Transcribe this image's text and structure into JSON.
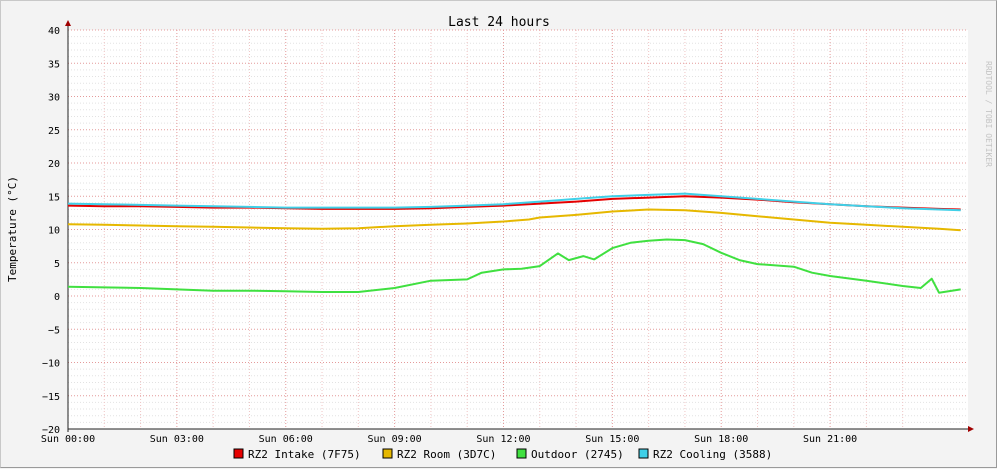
{
  "chart_data": {
    "type": "line",
    "title": "Last 24 hours",
    "ylabel": "Temperature (°C)",
    "xlabel": "",
    "watermark": "RRDTOOL / TOBI OETIKER",
    "ylim": [
      -20,
      40
    ],
    "y_ticks": [
      -20,
      -15,
      -10,
      -5,
      0,
      5,
      10,
      15,
      20,
      25,
      30,
      35,
      40
    ],
    "xlim": [
      0,
      24.8
    ],
    "x_ticks": [
      {
        "x": 0,
        "label": "Sun 00:00"
      },
      {
        "x": 3,
        "label": "Sun 03:00"
      },
      {
        "x": 6,
        "label": "Sun 06:00"
      },
      {
        "x": 9,
        "label": "Sun 09:00"
      },
      {
        "x": 12,
        "label": "Sun 12:00"
      },
      {
        "x": 15,
        "label": "Sun 15:00"
      },
      {
        "x": 18,
        "label": "Sun 18:00"
      },
      {
        "x": 21,
        "label": "Sun 21:00"
      }
    ],
    "grid": true,
    "legend_position": "bottom",
    "series": [
      {
        "name": "RZ2 Intake (7F75)",
        "color": "#e60000",
        "x": [
          0,
          1,
          2,
          3,
          4,
          5,
          6,
          7,
          8,
          9,
          10,
          11,
          12,
          13,
          14,
          15,
          16,
          17,
          18,
          19,
          20,
          21,
          22,
          23,
          24,
          24.6
        ],
        "y": [
          13.6,
          13.5,
          13.5,
          13.4,
          13.3,
          13.3,
          13.2,
          13.1,
          13.1,
          13.1,
          13.2,
          13.4,
          13.6,
          13.9,
          14.2,
          14.6,
          14.8,
          15.0,
          14.8,
          14.5,
          14.1,
          13.8,
          13.5,
          13.3,
          13.1,
          13.0
        ]
      },
      {
        "name": "RZ2 Room (3D7C)",
        "color": "#e6b800",
        "x": [
          0,
          1,
          2,
          3,
          4,
          5,
          6,
          7,
          8,
          9,
          10,
          11,
          12,
          12.7,
          13,
          14,
          15,
          16,
          17,
          18,
          19,
          20,
          21,
          22,
          23,
          24,
          24.6
        ],
        "y": [
          10.8,
          10.7,
          10.6,
          10.5,
          10.4,
          10.3,
          10.2,
          10.1,
          10.2,
          10.5,
          10.7,
          10.9,
          11.2,
          11.5,
          11.8,
          12.2,
          12.7,
          13.0,
          12.9,
          12.5,
          12.0,
          11.5,
          11.0,
          10.7,
          10.4,
          10.1,
          9.9
        ]
      },
      {
        "name": "Outdoor (2745)",
        "color": "#40e040",
        "x": [
          0,
          1,
          2,
          3,
          4,
          5,
          6,
          7,
          8,
          9,
          10,
          11,
          11.4,
          12,
          12.5,
          13,
          13.5,
          13.8,
          14.2,
          14.5,
          15,
          15.5,
          16,
          16.5,
          17,
          17.5,
          18,
          18.5,
          19,
          20,
          20.5,
          21,
          22,
          23,
          23.5,
          23.8,
          24,
          24.6
        ],
        "y": [
          1.4,
          1.3,
          1.2,
          1.0,
          0.8,
          0.8,
          0.7,
          0.6,
          0.6,
          1.2,
          2.3,
          2.5,
          3.5,
          4.0,
          4.1,
          4.5,
          6.4,
          5.4,
          6.0,
          5.5,
          7.2,
          8.0,
          8.3,
          8.5,
          8.4,
          7.8,
          6.5,
          5.4,
          4.8,
          4.4,
          3.5,
          3.0,
          2.3,
          1.5,
          1.2,
          2.6,
          0.5,
          1.0
        ]
      },
      {
        "name": "RZ2 Cooling (3588)",
        "color": "#40d0e8",
        "x": [
          0,
          1,
          2,
          3,
          4,
          5,
          6,
          7,
          8,
          9,
          10,
          11,
          12,
          13,
          14,
          15,
          16,
          17,
          18,
          19,
          20,
          21,
          22,
          23,
          24,
          24.6
        ],
        "y": [
          13.9,
          13.8,
          13.7,
          13.6,
          13.5,
          13.4,
          13.3,
          13.3,
          13.3,
          13.3,
          13.4,
          13.6,
          13.8,
          14.2,
          14.6,
          15.0,
          15.2,
          15.4,
          15.0,
          14.6,
          14.2,
          13.8,
          13.5,
          13.2,
          13.0,
          12.9
        ]
      }
    ]
  }
}
